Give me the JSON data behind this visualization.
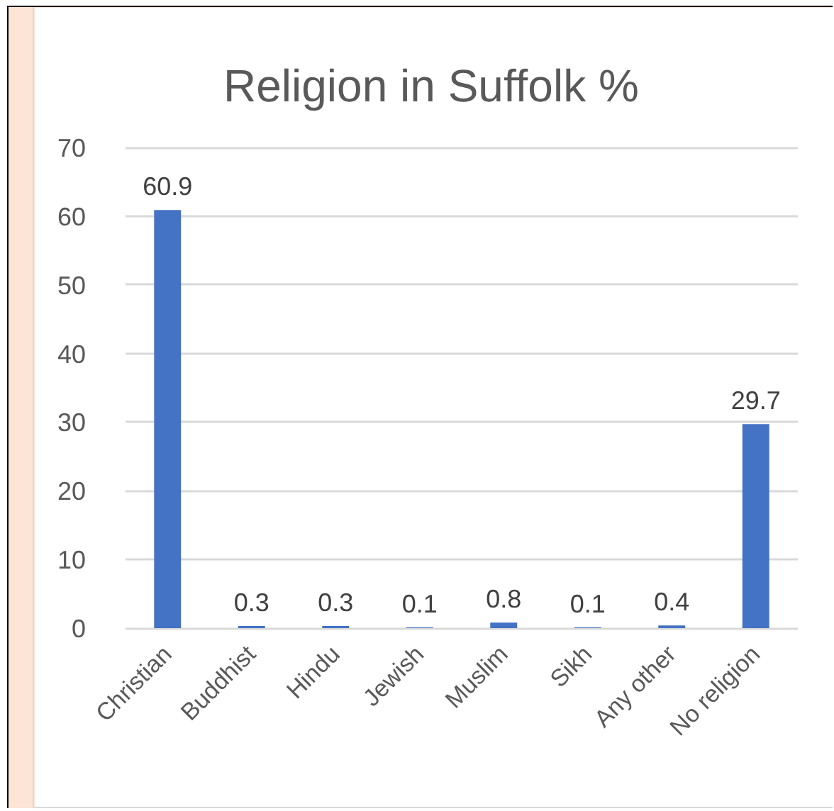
{
  "chart_data": {
    "type": "bar",
    "title": "Religion in Suffolk %",
    "categories": [
      "Christian",
      "Buddhist",
      "Hindu",
      "Jewish",
      "Muslim",
      "Sikh",
      "Any other",
      "No religion"
    ],
    "values": [
      60.9,
      0.3,
      0.3,
      0.1,
      0.8,
      0.1,
      0.4,
      29.7
    ],
    "color": "#4472c4",
    "ylim": [
      0,
      70
    ],
    "yticks": [
      0,
      10,
      20,
      30,
      40,
      50,
      60,
      70
    ],
    "grid": "y",
    "data_labels": true
  }
}
